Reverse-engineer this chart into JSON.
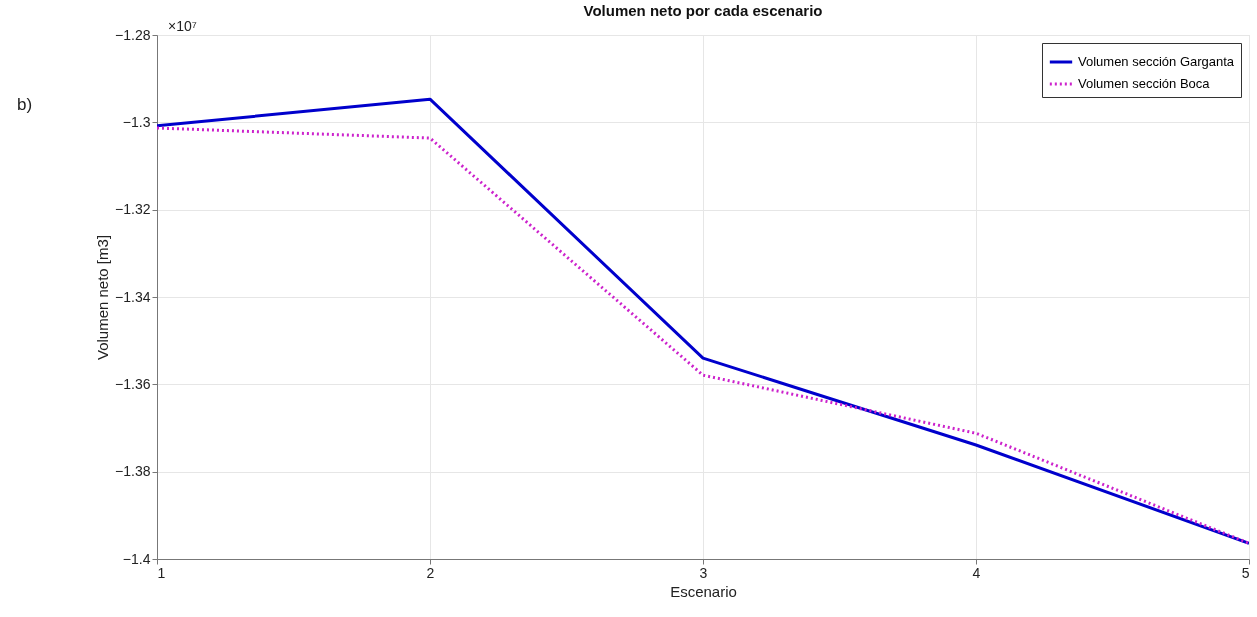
{
  "chart_data": {
    "type": "line",
    "title": "Volumen neto por cada escenario",
    "xlabel": "Escenario",
    "ylabel": "Volumen neto [m3]",
    "annotations": [
      "b)",
      "×10⁷"
    ],
    "x": [
      1,
      2,
      3,
      4,
      5
    ],
    "series": [
      {
        "name": "Volumen sección Garganta",
        "color": "#0000cc",
        "line_style": "solid",
        "values": [
          -1.3008,
          -1.2947,
          -1.354,
          -1.3739,
          -1.3964
        ]
      },
      {
        "name": "Volumen sección Boca",
        "color": "#cc22cc",
        "line_style": "dotted",
        "values": [
          -1.3013,
          -1.3036,
          -1.3579,
          -1.3712,
          -1.3964
        ]
      }
    ],
    "xlim": [
      1,
      5
    ],
    "xticks": [
      1,
      2,
      3,
      4,
      5
    ],
    "ylim": [
      -1.4,
      -1.28
    ],
    "yticks": [
      -1.4,
      -1.38,
      -1.36,
      -1.34,
      -1.32,
      -1.3,
      -1.28
    ],
    "grid": true,
    "legend": "top right",
    "marker": "none"
  }
}
